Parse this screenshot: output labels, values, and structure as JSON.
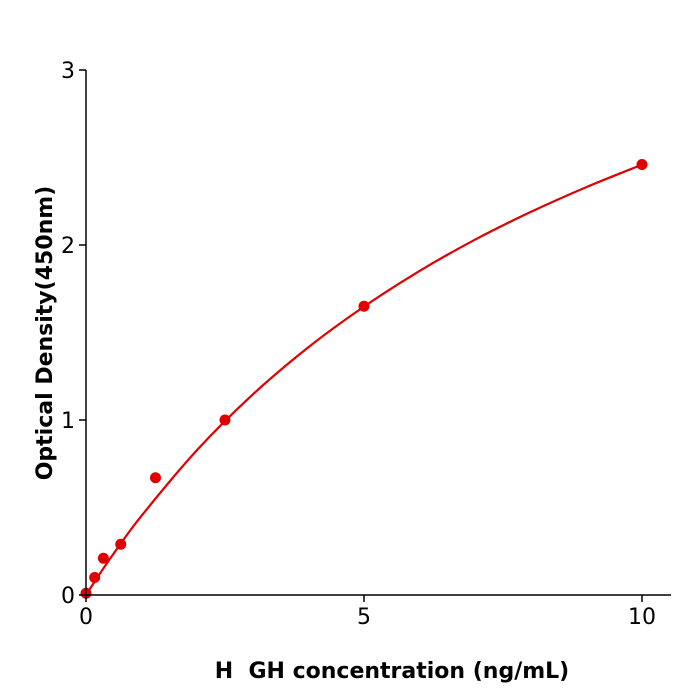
{
  "chart_data": {
    "type": "scatter",
    "title": "",
    "xlabel": "H  GH concentration (ng/mL)",
    "ylabel": "Optical Density(450nm)",
    "xlim": [
      0,
      10.5
    ],
    "ylim": [
      0,
      3
    ],
    "xticks": [
      "0",
      "5",
      "10"
    ],
    "yticks": [
      "0",
      "1",
      "2",
      "3"
    ],
    "grid": false,
    "color": "#e00000",
    "points": {
      "x": [
        0,
        0.156,
        0.313,
        0.625,
        1.25,
        2.5,
        5,
        10
      ],
      "y": [
        0.01,
        0.1,
        0.21,
        0.29,
        0.67,
        1.0,
        1.65,
        2.46
      ]
    },
    "fit_curve": {
      "x": [
        0,
        0.25,
        0.5,
        1,
        2,
        3,
        4,
        5,
        6,
        7,
        8,
        9,
        10
      ],
      "y": [
        0,
        0.122,
        0.238,
        0.453,
        0.829,
        1.146,
        1.416,
        1.648,
        1.852,
        2.031,
        2.189,
        2.331,
        2.459
      ]
    }
  }
}
